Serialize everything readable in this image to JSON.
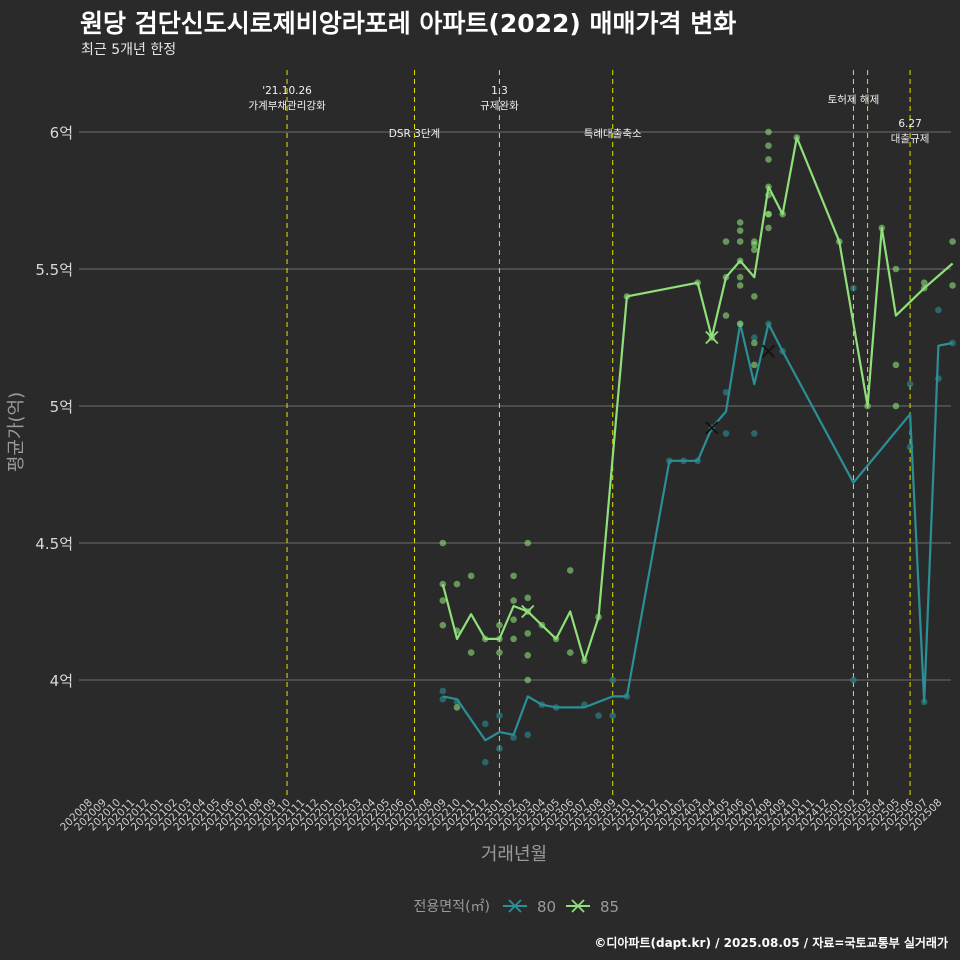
{
  "header": {
    "title": "원당 검단신도시로제비앙라포레 아파트(2022) 매매가격 변화",
    "subtitle": "최근 5개년 한정"
  },
  "footer": {
    "credit": "©디아파트(dapt.kr) / 2025.08.05 / 자료=국토교통부 실거래가"
  },
  "colors": {
    "background": "#2b2a2b",
    "grid": "#6e6e6e",
    "event_line": "#e3e300",
    "series_80": "#2b8f96",
    "series_85": "#8fe07a"
  },
  "chart_data": {
    "type": "line",
    "xlabel": "거래년월",
    "ylabel": "평균가(억)",
    "ylim": [
      3.57,
      6.23
    ],
    "grid": "horizontal",
    "legend_position": "bottom",
    "legend_title": "전용면적(㎡)",
    "categories": [
      "202008",
      "202009",
      "202010",
      "202011",
      "202012",
      "202101",
      "202102",
      "202103",
      "202104",
      "202105",
      "202106",
      "202107",
      "202108",
      "202109",
      "202110",
      "202111",
      "202112",
      "202201",
      "202202",
      "202203",
      "202204",
      "202205",
      "202206",
      "202207",
      "202208",
      "202209",
      "202210",
      "202211",
      "202212",
      "202301",
      "202302",
      "202303",
      "202304",
      "202305",
      "202306",
      "202307",
      "202308",
      "202309",
      "202310",
      "202311",
      "202312",
      "202401",
      "202402",
      "202403",
      "202404",
      "202405",
      "202406",
      "202407",
      "202408",
      "202409",
      "202410",
      "202411",
      "202412",
      "202501",
      "202502",
      "202503",
      "202504",
      "202505",
      "202506",
      "202507",
      "202508"
    ],
    "y_ticks": [
      {
        "value": 4.0,
        "label": "4억"
      },
      {
        "value": 4.5,
        "label": "4.5억"
      },
      {
        "value": 5.0,
        "label": "5억"
      },
      {
        "value": 5.5,
        "label": "5.5억"
      },
      {
        "value": 6.0,
        "label": "6억"
      }
    ],
    "events": [
      {
        "x": "202110",
        "lines": [
          "'21.10.26",
          "가계부채관리강화"
        ],
        "row": "top"
      },
      {
        "x": "202207",
        "lines": [
          "DSR 3단계"
        ],
        "row": "mid"
      },
      {
        "x": "202301",
        "lines": [
          "1.3",
          "규제완화"
        ],
        "row": "top"
      },
      {
        "x": "202309",
        "lines": [
          "특례대출축소"
        ],
        "row": "mid"
      },
      {
        "x": "202502",
        "lines": [
          "토허제 해제"
        ],
        "row": "upper"
      },
      {
        "x": "202503",
        "lines": [],
        "row": "none"
      },
      {
        "x": "202506",
        "lines": [
          "6.27",
          "대출규제"
        ],
        "row": "low"
      }
    ],
    "series": [
      {
        "name": "80",
        "line": [
          [
            "202209",
            3.94
          ],
          [
            "202210",
            3.93
          ],
          [
            "202212",
            3.78
          ],
          [
            "202301",
            3.81
          ],
          [
            "202302",
            3.8
          ],
          [
            "202303",
            3.94
          ],
          [
            "202304",
            3.91
          ],
          [
            "202305",
            3.9
          ],
          [
            "202307",
            3.9
          ],
          [
            "202308",
            3.92
          ],
          [
            "202309",
            3.94
          ],
          [
            "202310",
            3.94
          ],
          [
            "202401",
            4.8
          ],
          [
            "202402",
            4.8
          ],
          [
            "202403",
            4.8
          ],
          [
            "202404",
            4.92
          ],
          [
            "202405",
            4.98
          ],
          [
            "202406",
            5.3
          ],
          [
            "202407",
            5.08
          ],
          [
            "202408",
            5.3
          ],
          [
            "202409",
            5.2
          ],
          [
            "202502",
            4.72
          ],
          [
            "202506",
            4.97
          ],
          [
            "202507",
            3.92
          ],
          [
            "202508",
            5.22
          ],
          [
            "202509",
            5.23
          ]
        ],
        "points": [
          [
            "202209",
            3.96
          ],
          [
            "202209",
            3.93
          ],
          [
            "202210",
            3.92
          ],
          [
            "202212",
            3.7
          ],
          [
            "202212",
            3.84
          ],
          [
            "202301",
            3.75
          ],
          [
            "202301",
            3.87
          ],
          [
            "202302",
            3.79
          ],
          [
            "202303",
            3.8
          ],
          [
            "202304",
            3.91
          ],
          [
            "202305",
            3.9
          ],
          [
            "202307",
            3.91
          ],
          [
            "202308",
            3.87
          ],
          [
            "202309",
            4.0
          ],
          [
            "202309",
            3.87
          ],
          [
            "202310",
            3.94
          ],
          [
            "202401",
            4.8
          ],
          [
            "202402",
            4.8
          ],
          [
            "202403",
            4.8
          ],
          [
            "202404",
            4.92
          ],
          [
            "202405",
            5.05
          ],
          [
            "202405",
            4.9
          ],
          [
            "202406",
            5.3
          ],
          [
            "202407",
            5.25
          ],
          [
            "202407",
            4.9
          ],
          [
            "202408",
            5.3
          ],
          [
            "202409",
            5.2
          ],
          [
            "202502",
            5.43
          ],
          [
            "202502",
            4.0
          ],
          [
            "202506",
            4.85
          ],
          [
            "202506",
            5.08
          ],
          [
            "202507",
            3.92
          ],
          [
            "202508",
            5.35
          ],
          [
            "202508",
            5.1
          ],
          [
            "202509",
            5.23
          ]
        ],
        "cross_markers": [
          [
            "202404",
            4.92
          ],
          [
            "202408",
            5.2
          ]
        ]
      },
      {
        "name": "85",
        "line": [
          [
            "202209",
            4.35
          ],
          [
            "202210",
            4.15
          ],
          [
            "202211",
            4.24
          ],
          [
            "202212",
            4.15
          ],
          [
            "202301",
            4.15
          ],
          [
            "202302",
            4.27
          ],
          [
            "202303",
            4.25
          ],
          [
            "202304",
            4.2
          ],
          [
            "202305",
            4.15
          ],
          [
            "202306",
            4.25
          ],
          [
            "202307",
            4.07
          ],
          [
            "202308",
            4.23
          ],
          [
            "202310",
            5.4
          ],
          [
            "202403",
            5.45
          ],
          [
            "202404",
            5.25
          ],
          [
            "202405",
            5.47
          ],
          [
            "202406",
            5.53
          ],
          [
            "202407",
            5.47
          ],
          [
            "202408",
            5.8
          ],
          [
            "202409",
            5.7
          ],
          [
            "202410",
            5.98
          ],
          [
            "202501",
            5.6
          ],
          [
            "202503",
            5.0
          ],
          [
            "202504",
            5.65
          ],
          [
            "202505",
            5.33
          ],
          [
            "202507",
            5.43
          ],
          [
            "202509",
            5.52
          ]
        ],
        "points": [
          [
            "202209",
            4.5
          ],
          [
            "202209",
            4.35
          ],
          [
            "202209",
            4.29
          ],
          [
            "202209",
            4.2
          ],
          [
            "202210",
            4.35
          ],
          [
            "202210",
            4.18
          ],
          [
            "202210",
            3.9
          ],
          [
            "202211",
            4.38
          ],
          [
            "202211",
            4.1
          ],
          [
            "202212",
            4.15
          ],
          [
            "202301",
            4.2
          ],
          [
            "202301",
            4.1
          ],
          [
            "202301",
            4.15
          ],
          [
            "202302",
            4.38
          ],
          [
            "202302",
            4.29
          ],
          [
            "202302",
            4.22
          ],
          [
            "202302",
            4.15
          ],
          [
            "202303",
            4.5
          ],
          [
            "202303",
            4.3
          ],
          [
            "202303",
            4.25
          ],
          [
            "202303",
            4.17
          ],
          [
            "202303",
            4.09
          ],
          [
            "202303",
            4.0
          ],
          [
            "202304",
            4.2
          ],
          [
            "202305",
            4.15
          ],
          [
            "202306",
            4.4
          ],
          [
            "202306",
            4.1
          ],
          [
            "202307",
            4.07
          ],
          [
            "202308",
            4.23
          ],
          [
            "202310",
            5.4
          ],
          [
            "202403",
            5.45
          ],
          [
            "202404",
            5.25
          ],
          [
            "202405",
            5.6
          ],
          [
            "202405",
            5.33
          ],
          [
            "202405",
            5.47
          ],
          [
            "202406",
            5.67
          ],
          [
            "202406",
            5.64
          ],
          [
            "202406",
            5.6
          ],
          [
            "202406",
            5.53
          ],
          [
            "202406",
            5.47
          ],
          [
            "202406",
            5.44
          ],
          [
            "202406",
            5.3
          ],
          [
            "202407",
            5.6
          ],
          [
            "202407",
            5.59
          ],
          [
            "202407",
            5.57
          ],
          [
            "202407",
            5.4
          ],
          [
            "202407",
            5.23
          ],
          [
            "202407",
            5.15
          ],
          [
            "202408",
            6.0
          ],
          [
            "202408",
            5.95
          ],
          [
            "202408",
            5.9
          ],
          [
            "202408",
            5.8
          ],
          [
            "202408",
            5.77
          ],
          [
            "202408",
            5.7
          ],
          [
            "202408",
            5.7
          ],
          [
            "202408",
            5.65
          ],
          [
            "202409",
            5.7
          ],
          [
            "202410",
            5.98
          ],
          [
            "202501",
            5.6
          ],
          [
            "202503",
            5.0
          ],
          [
            "202504",
            5.65
          ],
          [
            "202505",
            5.5
          ],
          [
            "202505",
            5.15
          ],
          [
            "202505",
            5.0
          ],
          [
            "202507",
            5.43
          ],
          [
            "202507",
            5.45
          ],
          [
            "202509",
            5.6
          ],
          [
            "202509",
            5.44
          ]
        ],
        "cross_markers": [
          [
            "202404",
            5.25
          ],
          [
            "202303",
            4.25
          ]
        ]
      }
    ]
  }
}
